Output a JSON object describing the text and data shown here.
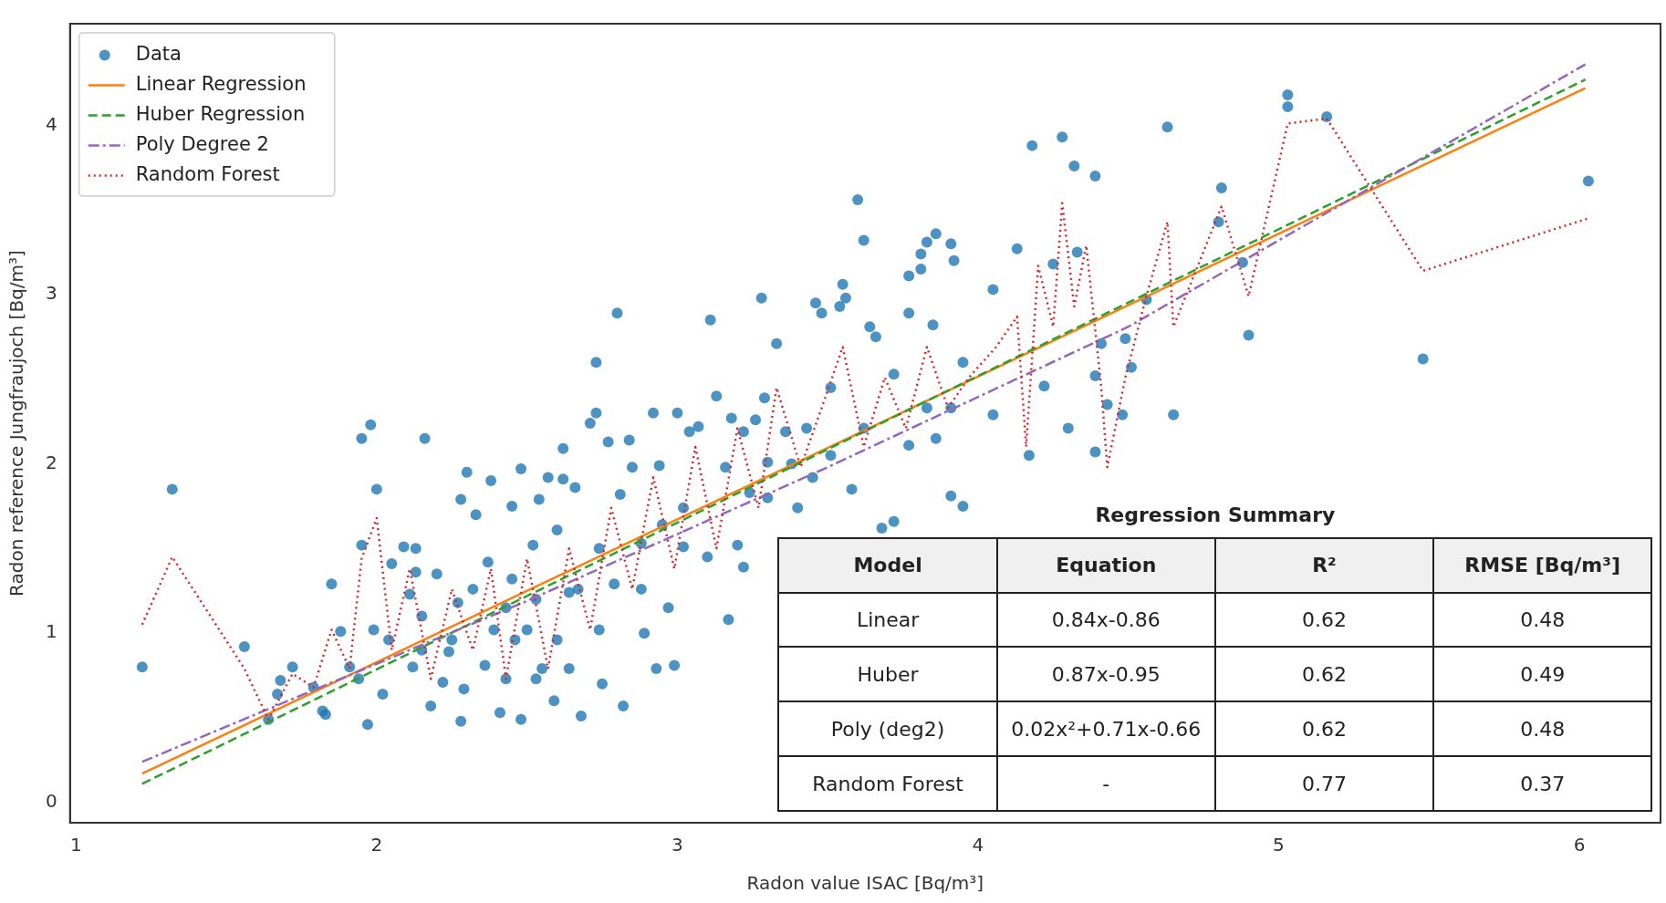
{
  "chart_data": {
    "type": "scatter",
    "xlabel": "Radon value ISAC [Bq/m³]",
    "ylabel": "Radon reference Jungfraujoch [Bq/m³]",
    "xlim": [
      0.98,
      6.27
    ],
    "ylim": [
      -0.12,
      4.6
    ],
    "xticks": [
      1,
      2,
      3,
      4,
      5,
      6
    ],
    "yticks": [
      0,
      1,
      2,
      3,
      4
    ],
    "grid": false,
    "legend": "top left",
    "marker": "circle",
    "series": [
      {
        "name": "Data",
        "type": "scatter",
        "color": "#1f77b4",
        "x": [
          1.22,
          1.32,
          1.56,
          1.64,
          1.68,
          1.72,
          1.67,
          1.79,
          1.82,
          1.85,
          1.88,
          1.83,
          1.91,
          1.94,
          1.95,
          1.98,
          2.0,
          1.95,
          1.97,
          1.99,
          2.02,
          2.05,
          2.09,
          2.13,
          2.13,
          2.16,
          2.2,
          2.15,
          2.11,
          2.12,
          2.18,
          2.22,
          2.24,
          2.27,
          2.28,
          2.3,
          2.28,
          2.33,
          2.36,
          2.38,
          2.37,
          2.41,
          2.43,
          2.45,
          2.45,
          2.48,
          2.48,
          2.5,
          2.52,
          2.54,
          2.55,
          2.57,
          2.59,
          2.62,
          2.62,
          2.6,
          2.64,
          2.66,
          2.68,
          2.71,
          2.73,
          2.73,
          2.77,
          2.75,
          2.8,
          2.82,
          2.84,
          2.85,
          2.89,
          2.92,
          2.93,
          2.94,
          2.97,
          3.0,
          2.99,
          3.04,
          3.07,
          3.11,
          3.13,
          3.17,
          3.18,
          3.22,
          3.22,
          3.28,
          3.26,
          3.29,
          3.33,
          3.36,
          3.38,
          3.4,
          3.43,
          3.46,
          3.48,
          3.51,
          3.54,
          3.55,
          3.56,
          3.6,
          3.62,
          3.64,
          3.66,
          3.68,
          3.72,
          3.72,
          3.77,
          3.77,
          3.81,
          3.81,
          3.83,
          3.85,
          3.86,
          3.91,
          3.92,
          3.91,
          3.95,
          4.05,
          4.05,
          4.13,
          4.17,
          4.18,
          4.22,
          4.25,
          4.28,
          4.3,
          4.32,
          4.33,
          4.39,
          4.39,
          4.41,
          4.39,
          4.43,
          4.48,
          4.49,
          4.51,
          4.56,
          4.63,
          4.65,
          4.8,
          4.81,
          4.88,
          4.9,
          5.03,
          5.03,
          5.16,
          5.48,
          6.03,
          2.81,
          2.88,
          3.02,
          3.1,
          2.95,
          3.24,
          3.2,
          3.3,
          3.45,
          3.51,
          3.58,
          3.62,
          3.77,
          3.83,
          3.86,
          3.95,
          3.91,
          2.74,
          2.67,
          2.79,
          2.53,
          2.39,
          2.32,
          2.25,
          2.46,
          2.6,
          2.74,
          2.88,
          3.02,
          3.16,
          3.3,
          2.04,
          2.15,
          2.29,
          2.43,
          2.53,
          2.64
        ],
        "values": [
          0.8,
          1.85,
          0.92,
          0.49,
          0.72,
          0.8,
          0.64,
          0.68,
          0.54,
          1.29,
          1.01,
          0.52,
          0.8,
          0.73,
          2.15,
          2.23,
          1.85,
          1.52,
          0.46,
          1.02,
          0.64,
          1.41,
          1.51,
          1.5,
          1.36,
          2.15,
          1.35,
          1.1,
          1.23,
          0.8,
          0.57,
          0.71,
          0.89,
          1.18,
          1.79,
          1.95,
          0.48,
          1.7,
          0.81,
          1.9,
          1.42,
          0.53,
          1.15,
          1.75,
          1.32,
          1.97,
          0.49,
          1.02,
          1.52,
          1.79,
          0.79,
          1.92,
          0.6,
          1.91,
          2.09,
          1.61,
          1.24,
          1.86,
          0.51,
          2.24,
          2.6,
          2.3,
          2.13,
          0.7,
          2.89,
          0.57,
          2.14,
          1.98,
          1.0,
          2.3,
          0.79,
          1.99,
          1.15,
          2.3,
          0.81,
          2.19,
          2.22,
          2.85,
          2.4,
          1.08,
          2.27,
          1.39,
          2.19,
          2.98,
          2.26,
          2.39,
          2.71,
          2.19,
          2.0,
          1.74,
          2.21,
          2.95,
          2.89,
          2.45,
          2.93,
          3.06,
          2.98,
          3.56,
          3.32,
          2.81,
          2.75,
          1.62,
          1.66,
          2.53,
          3.11,
          2.89,
          3.24,
          3.15,
          3.31,
          2.82,
          3.36,
          3.3,
          3.2,
          1.81,
          1.75,
          3.03,
          2.29,
          3.27,
          2.05,
          3.88,
          2.46,
          3.18,
          3.93,
          2.21,
          3.76,
          3.25,
          3.7,
          2.52,
          2.71,
          2.07,
          2.35,
          2.29,
          2.74,
          2.57,
          2.97,
          3.99,
          2.29,
          3.43,
          3.63,
          3.19,
          2.76,
          4.18,
          4.11,
          4.05,
          2.62,
          3.67,
          1.82,
          1.53,
          1.51,
          1.45,
          1.64,
          1.83,
          1.52,
          2.01,
          1.92,
          2.05,
          1.85,
          2.21,
          2.11,
          2.33,
          2.15,
          2.6,
          2.33,
          1.5,
          1.26,
          1.29,
          1.2,
          1.02,
          1.26,
          0.96,
          0.96,
          0.96,
          1.02,
          1.26,
          1.74,
          1.98,
          1.8,
          0.96,
          0.9,
          0.67,
          0.73,
          0.73,
          0.79
        ]
      },
      {
        "name": "Linear Regression",
        "type": "line",
        "color": "#ff7f0e",
        "line_style": "solid",
        "marker": "none",
        "x": [
          1.22,
          6.02
        ],
        "values": [
          0.17,
          4.22
        ]
      },
      {
        "name": "Huber Regression",
        "type": "line",
        "color": "#2ca02c",
        "line_style": "dashed",
        "marker": "none",
        "x": [
          1.22,
          6.02
        ],
        "values": [
          0.11,
          4.27
        ]
      },
      {
        "name": "Poly Degree 2",
        "type": "line",
        "color": "#9467bd",
        "line_style": "dashdot",
        "marker": "none",
        "x": [
          1.22,
          2.5,
          3.5,
          4.5,
          6.02
        ],
        "values": [
          0.24,
          1.19,
          1.98,
          2.81,
          4.36
        ]
      },
      {
        "name": "Random Forest",
        "type": "line",
        "color": "#d62728",
        "line_style": "dotted",
        "marker": "none",
        "x": [
          1.22,
          1.32,
          1.56,
          1.64,
          1.72,
          1.79,
          1.85,
          1.91,
          1.95,
          2.0,
          2.05,
          2.11,
          2.18,
          2.25,
          2.32,
          2.38,
          2.43,
          2.5,
          2.57,
          2.64,
          2.71,
          2.78,
          2.85,
          2.92,
          2.99,
          3.06,
          3.13,
          3.2,
          3.27,
          3.33,
          3.41,
          3.48,
          3.55,
          3.62,
          3.69,
          3.76,
          3.83,
          3.9,
          3.97,
          4.06,
          4.13,
          4.16,
          4.2,
          4.25,
          4.28,
          4.32,
          4.36,
          4.41,
          4.43,
          4.49,
          4.56,
          4.63,
          4.65,
          4.81,
          4.9,
          5.03,
          5.16,
          5.48,
          6.03
        ],
        "values": [
          1.05,
          1.45,
          0.79,
          0.49,
          0.76,
          0.68,
          1.02,
          0.79,
          1.44,
          1.68,
          0.9,
          1.38,
          0.73,
          1.26,
          0.9,
          1.38,
          0.73,
          1.44,
          0.79,
          1.5,
          1.02,
          1.74,
          1.26,
          1.92,
          1.38,
          2.1,
          1.5,
          2.21,
          1.74,
          2.45,
          1.98,
          2.33,
          2.69,
          2.1,
          2.51,
          2.21,
          2.69,
          2.33,
          2.51,
          2.69,
          2.87,
          2.1,
          3.17,
          2.81,
          3.54,
          2.93,
          3.29,
          2.45,
          1.98,
          2.51,
          2.99,
          3.43,
          2.81,
          3.52,
          2.99,
          4.01,
          4.04,
          3.14,
          3.45
        ]
      }
    ],
    "annotations": [
      "Regression Summary",
      "Model",
      "Equation",
      "R²",
      "RMSE [Bq/m³]",
      "Linear",
      "0.84x-0.86",
      "0.62",
      "0.48",
      "Huber",
      "0.87x-0.95",
      "0.62",
      "0.49",
      "Poly (deg2)",
      "0.02x²+0.71x-0.66",
      "0.62",
      "0.48",
      "Random Forest",
      "-",
      "0.77",
      "0.37"
    ]
  }
}
